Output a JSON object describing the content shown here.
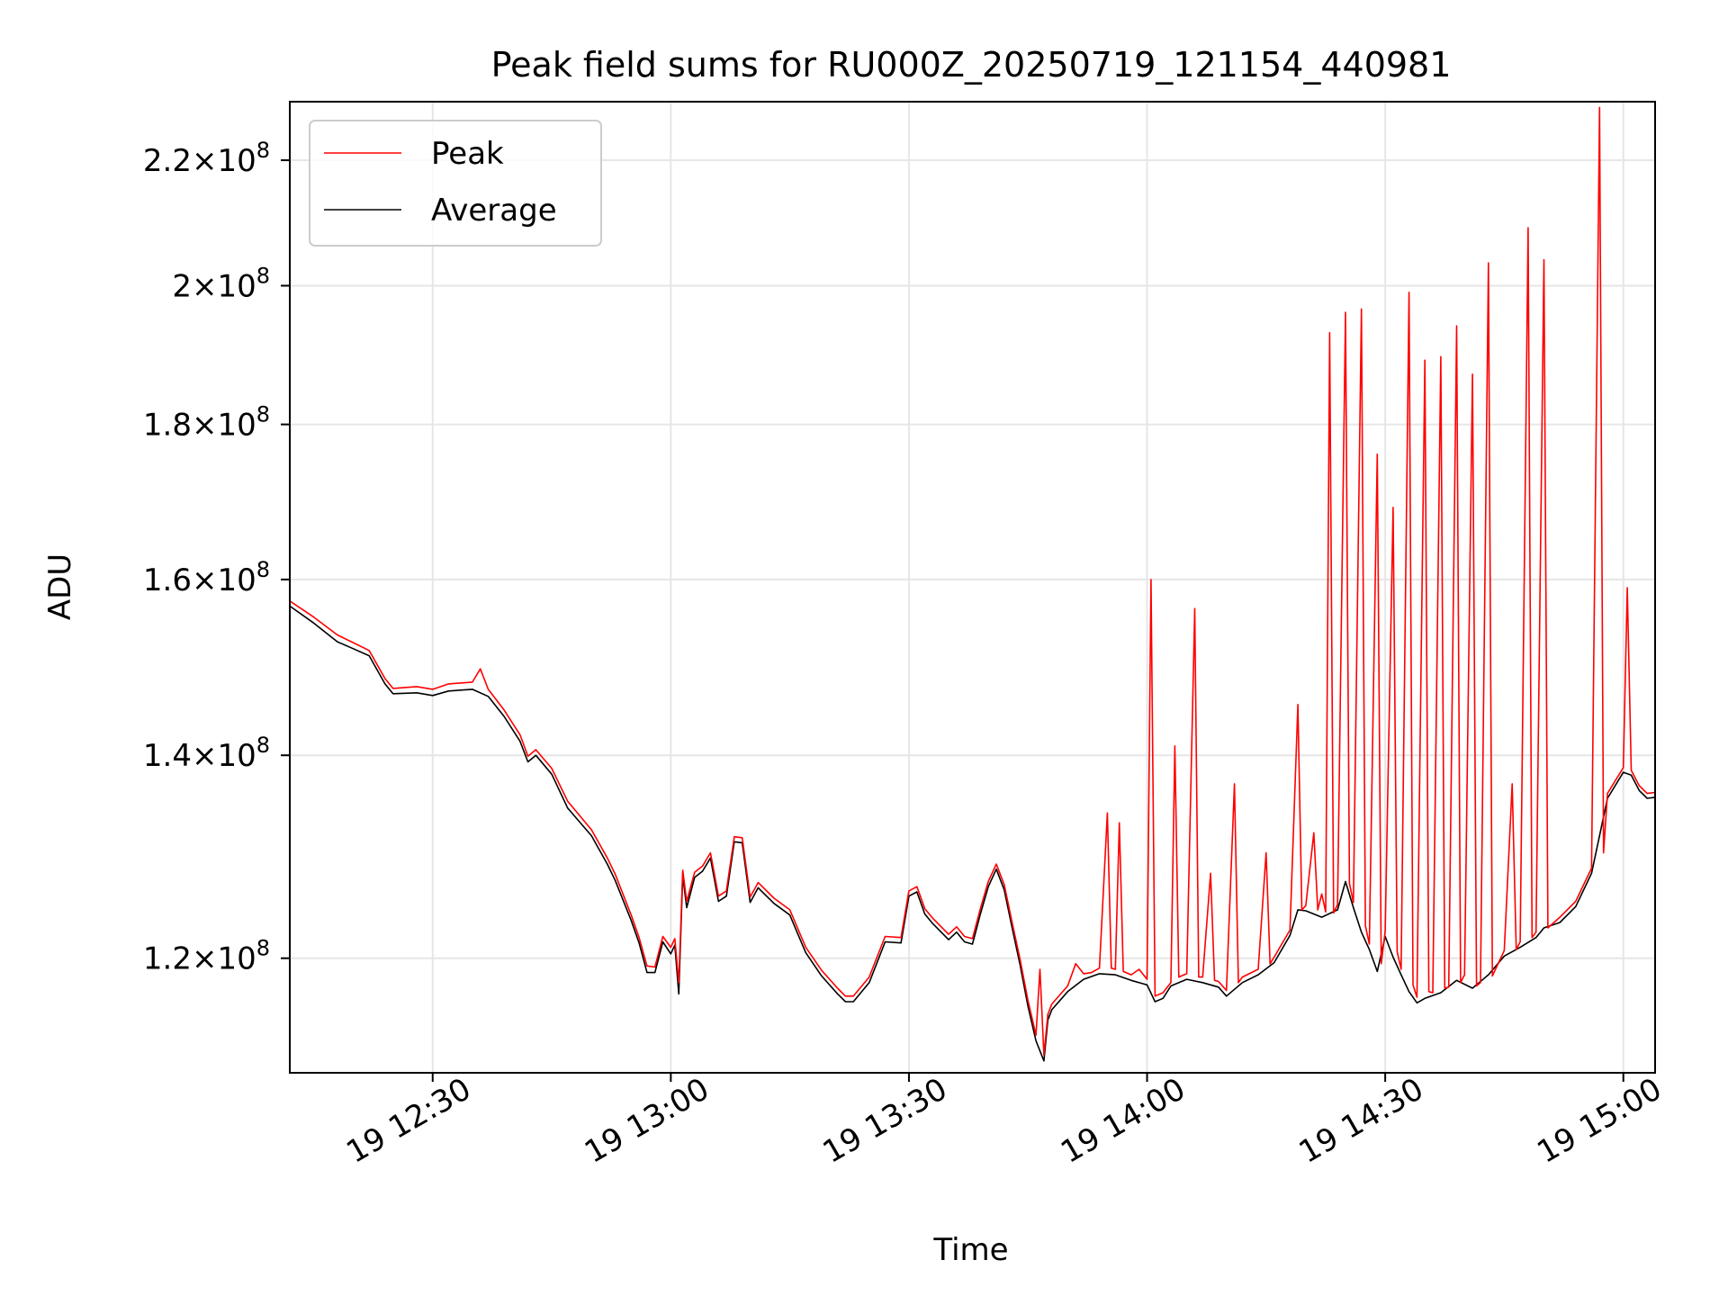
{
  "chart_data": {
    "type": "line",
    "title": "Peak field sums for RU000Z_20250719_121154_440981",
    "xlabel": "Time",
    "ylabel": "ADU",
    "y_scale": "log",
    "xlim": [
      "2025-07-19 12:12",
      "2025-07-19 15:04"
    ],
    "ylim": [
      110000000,
      230000000
    ],
    "x_ticks": [
      {
        "t": "2025-07-19 12:30",
        "label": "19 12:30"
      },
      {
        "t": "2025-07-19 13:00",
        "label": "19 13:00"
      },
      {
        "t": "2025-07-19 13:30",
        "label": "19 13:30"
      },
      {
        "t": "2025-07-19 14:00",
        "label": "19 14:00"
      },
      {
        "t": "2025-07-19 14:30",
        "label": "19 14:30"
      },
      {
        "t": "2025-07-19 15:00",
        "label": "19 15:00"
      }
    ],
    "y_ticks": [
      {
        "v": 120000000,
        "mantissa": "1.2",
        "exp": "8"
      },
      {
        "v": 140000000,
        "mantissa": "1.4",
        "exp": "8"
      },
      {
        "v": 160000000,
        "mantissa": "1.6",
        "exp": "8"
      },
      {
        "v": 180000000,
        "mantissa": "1.8",
        "exp": "8"
      },
      {
        "v": 200000000,
        "mantissa": "2",
        "exp": "8"
      },
      {
        "v": 220000000,
        "mantissa": "2.2",
        "exp": "8"
      }
    ],
    "grid": true,
    "legend_position": "top-left",
    "series": [
      {
        "name": "Average",
        "color": "#000000",
        "points": [
          [
            "12:12",
            156.8
          ],
          [
            "12:15",
            154.8
          ],
          [
            "12:18",
            152.6
          ],
          [
            "12:20",
            151.8
          ],
          [
            "12:22",
            151.0
          ],
          [
            "12:24",
            147.8
          ],
          [
            "12:25",
            146.7
          ],
          [
            "12:28",
            146.8
          ],
          [
            "12:30",
            146.5
          ],
          [
            "12:32",
            147.0
          ],
          [
            "12:35",
            147.2
          ],
          [
            "12:37",
            146.4
          ],
          [
            "12:39",
            144.2
          ],
          [
            "12:41",
            141.5
          ],
          [
            "12:42",
            139.3
          ],
          [
            "12:43",
            140.0
          ],
          [
            "12:45",
            138.0
          ],
          [
            "12:47",
            134.5
          ],
          [
            "12:50",
            131.7
          ],
          [
            "12:52",
            128.9
          ],
          [
            "12:53",
            127.3
          ],
          [
            "12:55",
            123.5
          ],
          [
            "12:56",
            121.4
          ],
          [
            "12:57",
            118.7
          ],
          [
            "12:58",
            118.7
          ],
          [
            "12:59",
            121.5
          ],
          [
            "13:00",
            120.4
          ],
          [
            "13:00:30",
            121.2
          ],
          [
            "13:01",
            116.8
          ],
          [
            "13:01:30",
            127.8
          ],
          [
            "13:02",
            124.7
          ],
          [
            "13:03",
            127.6
          ],
          [
            "13:04",
            128.2
          ],
          [
            "13:05",
            129.5
          ],
          [
            "13:06",
            125.3
          ],
          [
            "13:07",
            125.8
          ],
          [
            "13:08",
            131.1
          ],
          [
            "13:09",
            131.0
          ],
          [
            "13:10",
            125.2
          ],
          [
            "13:11",
            126.6
          ],
          [
            "13:13",
            125.1
          ],
          [
            "13:15",
            124.0
          ],
          [
            "13:17",
            120.5
          ],
          [
            "13:19",
            118.4
          ],
          [
            "13:21",
            116.8
          ],
          [
            "13:22",
            116.1
          ],
          [
            "13:23",
            116.1
          ],
          [
            "13:25",
            117.8
          ],
          [
            "13:27",
            121.5
          ],
          [
            "13:29",
            121.4
          ],
          [
            "13:30",
            125.8
          ],
          [
            "13:31",
            126.2
          ],
          [
            "13:32",
            124.1
          ],
          [
            "13:33",
            123.2
          ],
          [
            "13:35",
            121.7
          ],
          [
            "13:36",
            122.4
          ],
          [
            "13:37",
            121.5
          ],
          [
            "13:38",
            121.3
          ],
          [
            "13:39",
            124.1
          ],
          [
            "13:40",
            126.7
          ],
          [
            "13:41",
            128.4
          ],
          [
            "13:42",
            126.4
          ],
          [
            "13:43",
            122.8
          ],
          [
            "13:44",
            119.4
          ],
          [
            "13:45",
            115.7
          ],
          [
            "13:46",
            112.7
          ],
          [
            "13:47",
            111.0
          ],
          [
            "13:47:30",
            114.5
          ],
          [
            "13:48",
            115.4
          ],
          [
            "13:50",
            117.0
          ],
          [
            "13:52",
            118.1
          ],
          [
            "13:54",
            118.6
          ],
          [
            "13:56",
            118.5
          ],
          [
            "13:58",
            118.0
          ],
          [
            "14:00",
            117.6
          ],
          [
            "14:01",
            116.1
          ],
          [
            "14:02",
            116.4
          ],
          [
            "14:03",
            117.5
          ],
          [
            "14:05",
            118.1
          ],
          [
            "14:07",
            117.8
          ],
          [
            "14:09",
            117.4
          ],
          [
            "14:10",
            116.6
          ],
          [
            "14:12",
            117.8
          ],
          [
            "14:14",
            118.5
          ],
          [
            "14:16",
            119.6
          ],
          [
            "14:18",
            122.1
          ],
          [
            "14:19",
            124.5
          ],
          [
            "14:20",
            124.4
          ],
          [
            "14:22",
            123.8
          ],
          [
            "14:24",
            124.5
          ],
          [
            "14:25",
            127.2
          ],
          [
            "14:26",
            124.7
          ],
          [
            "14:27",
            122.4
          ],
          [
            "14:28",
            120.8
          ],
          [
            "14:29",
            118.8
          ],
          [
            "14:30",
            122.0
          ],
          [
            "14:31",
            120.1
          ],
          [
            "14:32",
            118.5
          ],
          [
            "14:33",
            117.0
          ],
          [
            "14:34",
            116.0
          ],
          [
            "14:35",
            116.4
          ],
          [
            "14:37",
            116.9
          ],
          [
            "14:39",
            118.0
          ],
          [
            "14:41",
            117.3
          ],
          [
            "14:43",
            118.5
          ],
          [
            "14:45",
            120.2
          ],
          [
            "14:47",
            121.0
          ],
          [
            "14:49",
            121.9
          ],
          [
            "14:50",
            122.8
          ],
          [
            "14:52",
            123.3
          ],
          [
            "14:54",
            124.8
          ],
          [
            "14:56",
            128.0
          ],
          [
            "14:58",
            135.5
          ],
          [
            "15:00",
            138.2
          ],
          [
            "15:01",
            137.9
          ],
          [
            "15:02",
            136.3
          ],
          [
            "15:03",
            135.5
          ],
          [
            "15:04",
            135.6
          ]
        ]
      },
      {
        "name": "Peak",
        "color": "#ff0000",
        "points": [
          [
            "12:12",
            157.4
          ],
          [
            "12:15",
            155.5
          ],
          [
            "12:18",
            153.4
          ],
          [
            "12:20",
            152.5
          ],
          [
            "12:22",
            151.6
          ],
          [
            "12:24",
            148.4
          ],
          [
            "12:25",
            147.3
          ],
          [
            "12:28",
            147.5
          ],
          [
            "12:30",
            147.2
          ],
          [
            "12:32",
            147.8
          ],
          [
            "12:35",
            148.0
          ],
          [
            "12:36",
            149.5
          ],
          [
            "12:37",
            147.2
          ],
          [
            "12:39",
            144.9
          ],
          [
            "12:41",
            142.2
          ],
          [
            "12:42",
            139.9
          ],
          [
            "12:43",
            140.6
          ],
          [
            "12:45",
            138.6
          ],
          [
            "12:47",
            135.2
          ],
          [
            "12:50",
            132.3
          ],
          [
            "12:52",
            129.5
          ],
          [
            "12:53",
            127.9
          ],
          [
            "12:55",
            124.0
          ],
          [
            "12:56",
            121.9
          ],
          [
            "12:57",
            119.3
          ],
          [
            "12:58",
            119.2
          ],
          [
            "12:59",
            122.0
          ],
          [
            "13:00",
            121.0
          ],
          [
            "13:00:30",
            121.8
          ],
          [
            "13:01",
            117.8
          ],
          [
            "13:01:30",
            128.3
          ],
          [
            "13:02",
            125.3
          ],
          [
            "13:03",
            128.1
          ],
          [
            "13:04",
            128.7
          ],
          [
            "13:05",
            130.0
          ],
          [
            "13:06",
            125.8
          ],
          [
            "13:07",
            126.3
          ],
          [
            "13:08",
            131.6
          ],
          [
            "13:09",
            131.5
          ],
          [
            "13:10",
            125.7
          ],
          [
            "13:11",
            127.1
          ],
          [
            "13:13",
            125.6
          ],
          [
            "13:15",
            124.5
          ],
          [
            "13:17",
            121.0
          ],
          [
            "13:19",
            118.9
          ],
          [
            "13:21",
            117.3
          ],
          [
            "13:22",
            116.6
          ],
          [
            "13:23",
            116.6
          ],
          [
            "13:25",
            118.3
          ],
          [
            "13:27",
            122.0
          ],
          [
            "13:29",
            121.9
          ],
          [
            "13:30",
            126.3
          ],
          [
            "13:31",
            126.7
          ],
          [
            "13:32",
            124.6
          ],
          [
            "13:33",
            123.7
          ],
          [
            "13:35",
            122.2
          ],
          [
            "13:36",
            122.9
          ],
          [
            "13:37",
            122.0
          ],
          [
            "13:38",
            121.8
          ],
          [
            "13:39",
            124.6
          ],
          [
            "13:40",
            127.2
          ],
          [
            "13:41",
            128.9
          ],
          [
            "13:42",
            126.9
          ],
          [
            "13:43",
            123.3
          ],
          [
            "13:44",
            119.9
          ],
          [
            "13:45",
            116.2
          ],
          [
            "13:46",
            113.2
          ],
          [
            "13:46:30",
            119.0
          ],
          [
            "13:47",
            111.5
          ],
          [
            "13:47:30",
            115.0
          ],
          [
            "13:48",
            115.9
          ],
          [
            "13:50",
            117.5
          ],
          [
            "13:51",
            119.5
          ],
          [
            "13:52",
            118.6
          ],
          [
            "13:53",
            118.7
          ],
          [
            "13:54",
            119.1
          ],
          [
            "13:55",
            134.0
          ],
          [
            "13:55:30",
            119.1
          ],
          [
            "13:56",
            119.0
          ],
          [
            "13:56:30",
            133.0
          ],
          [
            "13:57",
            118.8
          ],
          [
            "13:58",
            118.5
          ],
          [
            "13:59",
            119.0
          ],
          [
            "14:00",
            118.1
          ],
          [
            "14:00:30",
            160.0
          ],
          [
            "14:01",
            116.6
          ],
          [
            "14:02",
            116.9
          ],
          [
            "14:03",
            117.8
          ],
          [
            "14:03:30",
            141.0
          ],
          [
            "14:04",
            118.3
          ],
          [
            "14:05",
            118.6
          ],
          [
            "14:06",
            156.5
          ],
          [
            "14:06:30",
            118.3
          ],
          [
            "14:07",
            118.3
          ],
          [
            "14:08",
            128.0
          ],
          [
            "14:08:30",
            118.0
          ],
          [
            "14:09",
            117.9
          ],
          [
            "14:10",
            117.1
          ],
          [
            "14:11",
            137.0
          ],
          [
            "14:11:30",
            117.8
          ],
          [
            "14:12",
            118.3
          ],
          [
            "14:14",
            119.0
          ],
          [
            "14:15",
            130.0
          ],
          [
            "14:15:30",
            119.5
          ],
          [
            "14:16",
            120.1
          ],
          [
            "14:18",
            122.6
          ],
          [
            "14:19",
            145.5
          ],
          [
            "14:19:30",
            124.5
          ],
          [
            "14:20",
            124.9
          ],
          [
            "14:21",
            132.0
          ],
          [
            "14:21:30",
            124.5
          ],
          [
            "14:22",
            126.0
          ],
          [
            "14:22:30",
            124.3
          ],
          [
            "14:23",
            193.0
          ],
          [
            "14:23:30",
            124.2
          ],
          [
            "14:24",
            125.0
          ],
          [
            "14:25",
            196.0
          ],
          [
            "14:25:30",
            127.0
          ],
          [
            "14:26",
            125.2
          ],
          [
            "14:27",
            196.5
          ],
          [
            "14:27:30",
            123.0
          ],
          [
            "14:28",
            121.3
          ],
          [
            "14:29",
            176.0
          ],
          [
            "14:29:30",
            119.5
          ],
          [
            "14:30",
            122.5
          ],
          [
            "14:31",
            169.0
          ],
          [
            "14:31:30",
            120.6
          ],
          [
            "14:32",
            119.0
          ],
          [
            "14:33",
            199.0
          ],
          [
            "14:33:30",
            117.6
          ],
          [
            "14:34",
            116.5
          ],
          [
            "14:35",
            189.0
          ],
          [
            "14:35:30",
            117.0
          ],
          [
            "14:36",
            116.9
          ],
          [
            "14:37",
            189.5
          ],
          [
            "14:37:30",
            117.3
          ],
          [
            "14:38",
            117.4
          ],
          [
            "14:39",
            194.0
          ],
          [
            "14:39:30",
            117.8
          ],
          [
            "14:40",
            118.5
          ],
          [
            "14:41",
            187.0
          ],
          [
            "14:41:30",
            117.5
          ],
          [
            "14:42",
            117.8
          ],
          [
            "14:43",
            203.5
          ],
          [
            "14:43:30",
            118.4
          ],
          [
            "14:45",
            120.7
          ],
          [
            "14:46",
            137.0
          ],
          [
            "14:46:30",
            120.8
          ],
          [
            "14:47",
            121.5
          ],
          [
            "14:48",
            209.0
          ],
          [
            "14:48:30",
            121.9
          ],
          [
            "14:49",
            122.4
          ],
          [
            "14:50",
            204.0
          ],
          [
            "14:50:30",
            122.8
          ],
          [
            "14:52",
            123.8
          ],
          [
            "14:54",
            125.3
          ],
          [
            "14:56",
            128.5
          ],
          [
            "14:57",
            229.0
          ],
          [
            "14:57:30",
            130.0
          ],
          [
            "14:58",
            136.0
          ],
          [
            "15:00",
            138.7
          ],
          [
            "15:00:30",
            159.0
          ],
          [
            "15:01",
            138.4
          ],
          [
            "15:02",
            136.8
          ],
          [
            "15:03",
            136.0
          ],
          [
            "15:04",
            136.1
          ]
        ]
      }
    ]
  }
}
